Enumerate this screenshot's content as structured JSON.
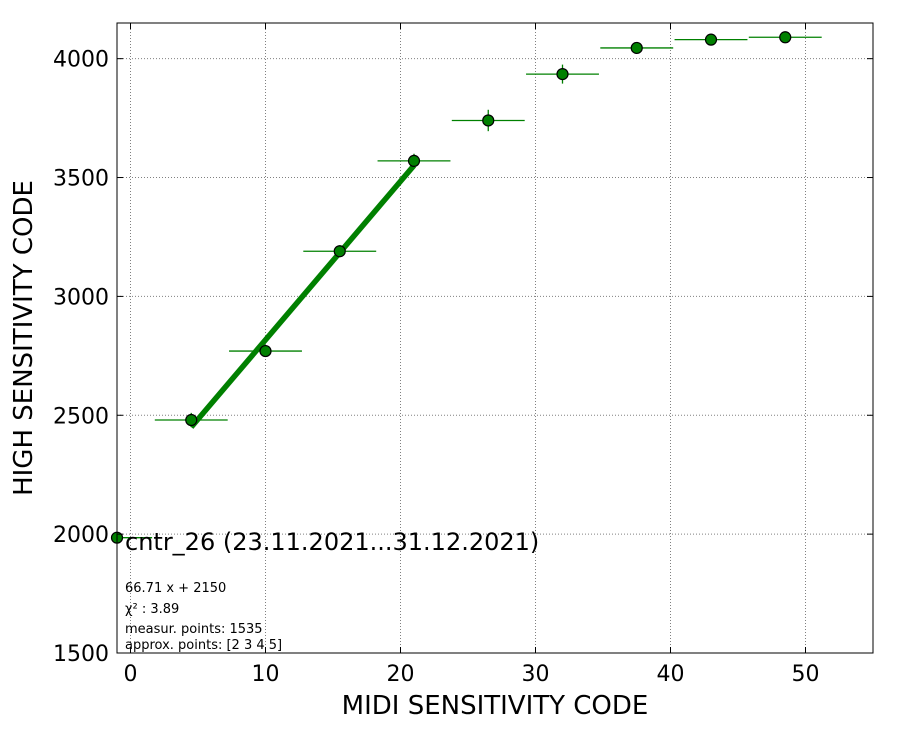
{
  "chart_data": {
    "type": "scatter",
    "xlabel": "MIDI SENSITIVITY CODE",
    "ylabel": "HIGH SENSITIVITY CODE",
    "xlim": [
      -1,
      55
    ],
    "ylim": [
      1500,
      4150
    ],
    "xticks": [
      0,
      10,
      20,
      30,
      40,
      50
    ],
    "yticks": [
      1500,
      2000,
      2500,
      3000,
      3500,
      4000
    ],
    "grid": true,
    "colors": {
      "marker": "#008000",
      "marker_edge": "#000000",
      "fit_line": "#008000",
      "grid": "#808080"
    },
    "series": [
      {
        "name": "cntr_26 (23.11.2021...31.12.2021)",
        "points": [
          {
            "x": -1,
            "y": 1985,
            "xerr": 2.6,
            "yerr": 0
          },
          {
            "x": 4.5,
            "y": 2480,
            "xerr": 2.7,
            "yerr": 30
          },
          {
            "x": 10,
            "y": 2770,
            "xerr": 2.7,
            "yerr": 25
          },
          {
            "x": 15.5,
            "y": 3190,
            "xerr": 2.7,
            "yerr": 25
          },
          {
            "x": 21,
            "y": 3570,
            "xerr": 2.7,
            "yerr": 30
          },
          {
            "x": 26.5,
            "y": 3740,
            "xerr": 2.7,
            "yerr": 45
          },
          {
            "x": 32,
            "y": 3935,
            "xerr": 2.7,
            "yerr": 40
          },
          {
            "x": 37.5,
            "y": 4045,
            "xerr": 2.7,
            "yerr": 15
          },
          {
            "x": 43,
            "y": 4080,
            "xerr": 2.7,
            "yerr": 10
          },
          {
            "x": 48.5,
            "y": 4090,
            "xerr": 2.7,
            "yerr": 10
          }
        ]
      }
    ],
    "fit": {
      "slope": 66.71,
      "intercept": 2150,
      "x_range": [
        4.5,
        21
      ]
    },
    "annotations": [
      "66.71 x + 2150",
      "χ² : 3.89",
      "measur. points: 1535",
      "approx. points: [2 3 4 5]"
    ],
    "legend_position": "lower-left"
  }
}
